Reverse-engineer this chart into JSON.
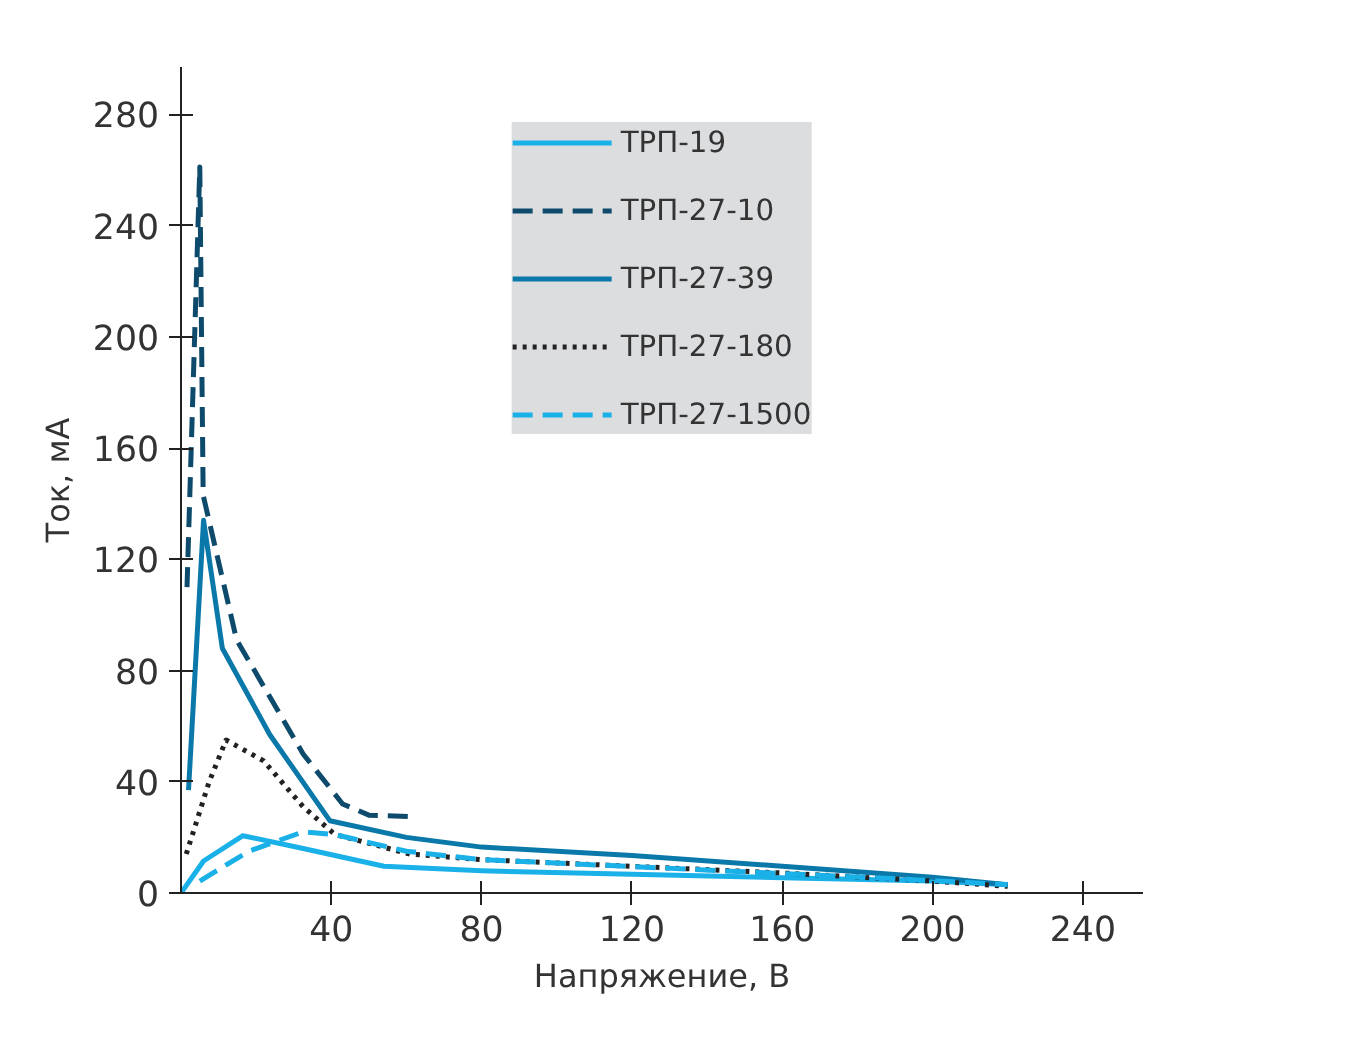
{
  "chart_data": {
    "type": "line",
    "xlabel": "Напряжение, В",
    "ylabel": "Ток, мА",
    "xlim": [
      0,
      256
    ],
    "ylim": [
      0,
      297
    ],
    "xticks": [
      40,
      80,
      120,
      160,
      200,
      240
    ],
    "yticks": [
      0,
      40,
      80,
      120,
      160,
      200,
      240,
      280
    ],
    "grid": false,
    "legend": "top",
    "marker": "none",
    "series": [
      {
        "name": "ТРП-19",
        "color": "#1ab0e8",
        "line_style": "solid",
        "x": [
          0,
          6,
          16.5,
          32.5,
          54,
          80,
          120,
          160,
          200,
          220
        ],
        "values": [
          0,
          11.5,
          20.6,
          16,
          9.6,
          8,
          6.7,
          5.5,
          4.3,
          3
        ]
      },
      {
        "name": "ТРП-27-10",
        "color": "#0d4a6b",
        "line_style": "dashed",
        "x": [
          1.6,
          5,
          5.9,
          14.8,
          32.5,
          43,
          50,
          61
        ],
        "values": [
          110,
          261,
          143,
          91,
          50,
          32,
          28,
          27.5
        ]
      },
      {
        "name": "ТРП-27-39",
        "color": "#0a78a8",
        "line_style": "solid",
        "x": [
          2,
          6,
          11,
          23.6,
          39.6,
          60,
          80,
          120,
          160,
          200,
          220
        ],
        "values": [
          37,
          134,
          88,
          57,
          26,
          20,
          16.5,
          13.5,
          9.6,
          5.7,
          3
        ]
      },
      {
        "name": "ТРП-27-180",
        "color": "#222222",
        "line_style": "dotted",
        "x": [
          1.4,
          7.5,
          12,
          22,
          32.5,
          41,
          61,
          80,
          120,
          160,
          200,
          220
        ],
        "values": [
          14,
          40,
          55,
          47.5,
          31,
          21,
          14,
          12,
          9.6,
          7.2,
          4.3,
          2.4
        ]
      },
      {
        "name": "ТРП-27-1500",
        "color": "#1ab0e8",
        "line_style": "dashed",
        "x": [
          5,
          18,
          32.5,
          41,
          60,
          80,
          120,
          160,
          200,
          220
        ],
        "values": [
          4.3,
          15,
          22,
          21,
          15,
          12,
          9.5,
          7,
          4.5,
          3
        ]
      }
    ]
  }
}
